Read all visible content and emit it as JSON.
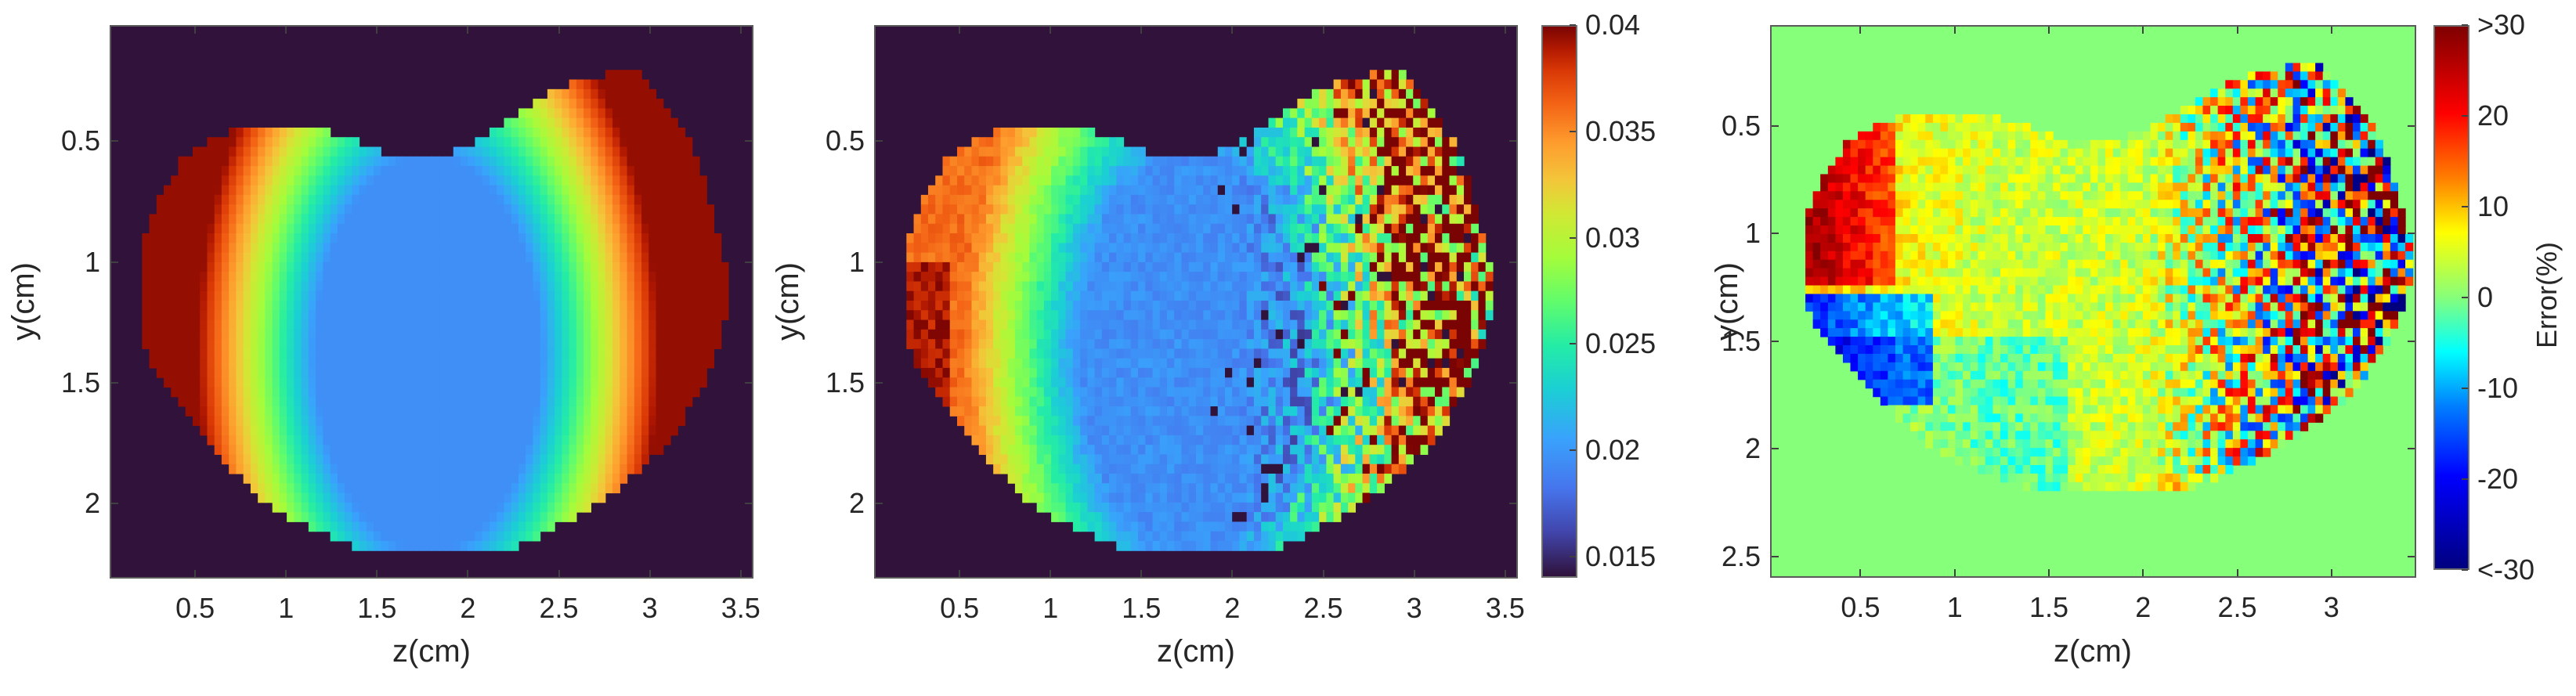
{
  "chart_data": [
    {
      "type": "heatmap",
      "title": "",
      "xlabel": "z(cm)",
      "ylabel": "y(cm)",
      "xlim": [
        0.03,
        3.57
      ],
      "ylim": [
        0.02,
        2.31
      ],
      "y_reversed": true,
      "xticks": [
        0.5,
        1,
        1.5,
        2,
        2.5,
        3,
        3.5
      ],
      "xtick_labels": [
        "0.5",
        "1",
        "1.5",
        "2",
        "2.5",
        "3",
        "3.5"
      ],
      "yticks": [
        0.5,
        1,
        1.5,
        2
      ],
      "ytick_labels": [
        "0.5",
        "1",
        "1.5",
        "2"
      ],
      "colormap": "turbo",
      "clim": [
        0.014,
        0.04
      ],
      "background_color": "#30123b",
      "description": "Ground-truth smooth map: ~0.0195 (blue) in central ellipse centered (z=1.75, y=1.35), rising radially to ~0.038-0.040 (dark red) at left and right edges of kidney/heart-shaped region",
      "field": {
        "kind": "radial",
        "center": [
          1.78,
          1.38
        ],
        "radii": [
          0.62,
          0.82
        ],
        "inner_value": 0.0195,
        "outer_value": 0.0395,
        "noise": 0
      },
      "colorbar": null
    },
    {
      "type": "heatmap",
      "title": "",
      "xlabel": "z(cm)",
      "ylabel": "y(cm)",
      "xlim": [
        0.03,
        3.57
      ],
      "ylim": [
        0.02,
        2.31
      ],
      "y_reversed": true,
      "xticks": [
        0.5,
        1,
        1.5,
        2,
        2.5,
        3,
        3.5
      ],
      "xtick_labels": [
        "0.5",
        "1",
        "1.5",
        "2",
        "2.5",
        "3",
        "3.5"
      ],
      "yticks": [
        0.5,
        1,
        1.5,
        2
      ],
      "ytick_labels": [
        "0.5",
        "1",
        "1.5",
        "2"
      ],
      "colormap": "turbo",
      "clim": [
        0.014,
        0.04
      ],
      "background_color": "#30123b",
      "description": "Reconstructed noisy map: blue ~0.019-0.021 centre-left, orange/red ~0.033-0.038 at far-left edge, increasingly noisy toward right (z>2.4) with many saturated dark-red (0.04) and dark pixels",
      "field": {
        "kind": "reconstructed",
        "center": [
          1.78,
          1.38
        ],
        "radii": [
          0.62,
          0.82
        ],
        "inner_value": 0.0195,
        "outer_value": 0.036,
        "noise_base": 0.0008,
        "noise_gain_start_z": 2.0,
        "noise_gain": 0.012
      },
      "colorbar": {
        "ticks": [
          0.015,
          0.02,
          0.025,
          0.03,
          0.035,
          0.04
        ],
        "tick_labels": [
          "0.015",
          "0.02",
          "0.025",
          "0.03",
          "0.035",
          "0.04"
        ],
        "label": ""
      }
    },
    {
      "type": "heatmap",
      "title": "",
      "xlabel": "z(cm)",
      "ylabel": "y(cm)",
      "xlim": [
        0.02,
        3.45
      ],
      "ylim": [
        0.03,
        2.6
      ],
      "y_reversed": true,
      "xticks": [
        0.5,
        1,
        1.5,
        2,
        2.5,
        3
      ],
      "xtick_labels": [
        "0.5",
        "1",
        "1.5",
        "2",
        "2.5",
        "3"
      ],
      "yticks": [
        0.5,
        1,
        1.5,
        2,
        2.5
      ],
      "ytick_labels": [
        "0.5",
        "1",
        "1.5",
        "2",
        "2.5"
      ],
      "colormap": "jet",
      "clim": [
        -30,
        30
      ],
      "background_color": "#86ff7a",
      "description": "Relative error (%) map: ~0-10% (yellow/green) across most of region, +15 to >30% (orange/dark red) at upper-left edge, -10 to <-30% (cyan/dark blue) near z=0.2,y=1.45, strongly noisy saturated +/- values for z>2.5",
      "field": {
        "kind": "error",
        "noise_base": 4,
        "noise_gain_start_z": 2.0,
        "noise_gain": 40
      },
      "colorbar": {
        "ticks": [
          -30,
          -20,
          -10,
          0,
          10,
          20,
          30
        ],
        "tick_labels": [
          "<-30",
          "-20",
          "-10",
          "0",
          "10",
          "20",
          ">30"
        ],
        "label": "Error(%)"
      }
    }
  ],
  "shape_boundary": {
    "note": "approximate mask outline in (z, y) cm, shared by all panels",
    "points": [
      [
        0.83,
        0.44
      ],
      [
        1.22,
        0.45
      ],
      [
        1.45,
        0.52
      ],
      [
        1.68,
        0.58
      ],
      [
        1.78,
        0.58
      ],
      [
        1.96,
        0.53
      ],
      [
        2.22,
        0.42
      ],
      [
        2.45,
        0.3
      ],
      [
        2.6,
        0.25
      ],
      [
        2.75,
        0.22
      ],
      [
        2.95,
        0.22
      ],
      [
        3.05,
        0.3
      ],
      [
        3.2,
        0.45
      ],
      [
        3.32,
        0.68
      ],
      [
        3.38,
        0.86
      ],
      [
        3.42,
        1.0
      ],
      [
        3.44,
        1.15
      ],
      [
        3.4,
        1.32
      ],
      [
        3.32,
        1.48
      ],
      [
        3.22,
        1.62
      ],
      [
        3.08,
        1.78
      ],
      [
        2.9,
        1.9
      ],
      [
        2.68,
        2.02
      ],
      [
        2.45,
        2.12
      ],
      [
        2.2,
        2.2
      ],
      [
        1.98,
        2.22
      ],
      [
        1.65,
        2.22
      ],
      [
        1.4,
        2.2
      ],
      [
        1.1,
        2.1
      ],
      [
        0.85,
        1.98
      ],
      [
        0.62,
        1.8
      ],
      [
        0.42,
        1.62
      ],
      [
        0.28,
        1.48
      ],
      [
        0.2,
        1.3
      ],
      [
        0.19,
        1.12
      ],
      [
        0.22,
        0.9
      ],
      [
        0.3,
        0.72
      ],
      [
        0.44,
        0.55
      ],
      [
        0.6,
        0.47
      ]
    ]
  },
  "grid_cell_cm": 0.04,
  "colors": {
    "axes_border": "#5a5a5a",
    "text": "#262626"
  }
}
